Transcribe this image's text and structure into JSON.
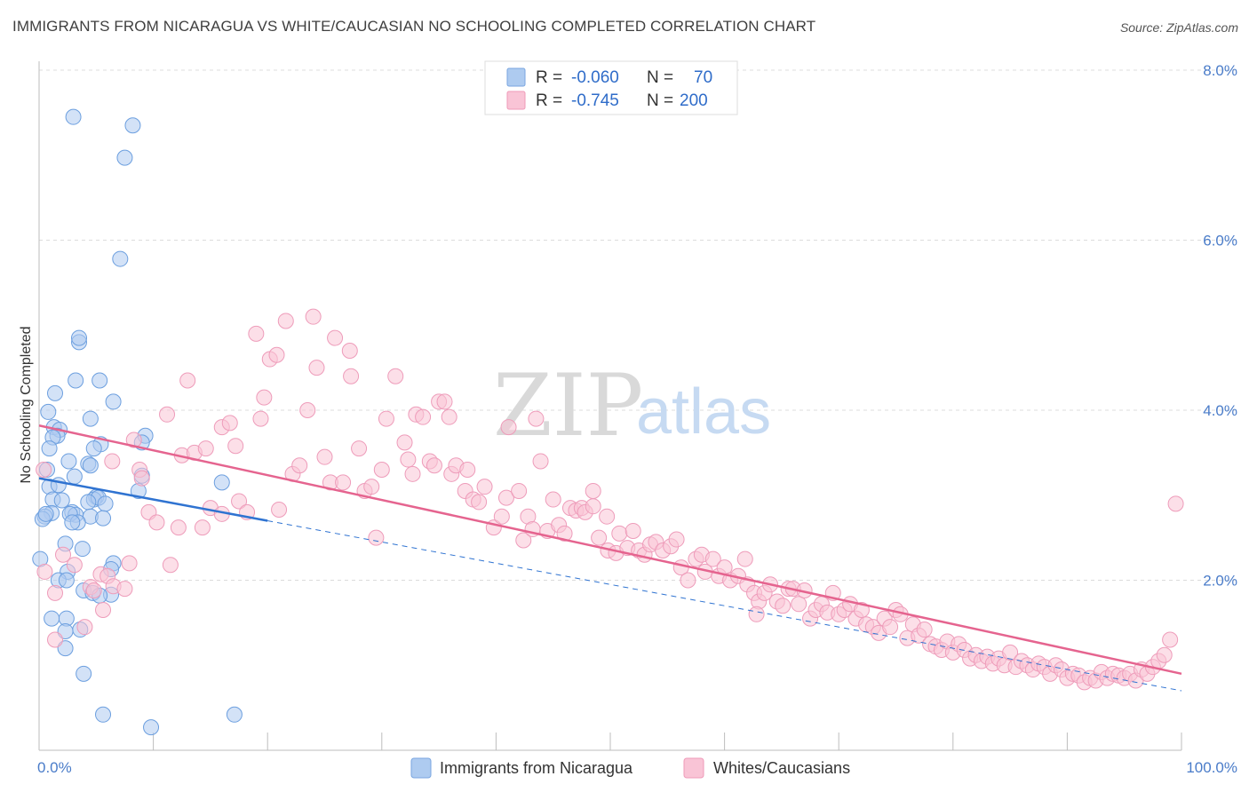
{
  "title": "IMMIGRANTS FROM NICARAGUA VS WHITE/CAUCASIAN NO SCHOOLING COMPLETED CORRELATION CHART",
  "source": "Source: ZipAtlas.com",
  "watermark": {
    "zip": "ZIP",
    "atlas": "atlas"
  },
  "legend": {
    "r_label": "R =",
    "n_label": "N =",
    "rows": [
      {
        "r": "-0.060",
        "n": "70",
        "color": "#aecbf0",
        "stroke": "#7aa6e0"
      },
      {
        "r": "-0.745",
        "n": "200",
        "color": "#f9c4d6",
        "stroke": "#ef9ab8"
      }
    ]
  },
  "chart_data": {
    "type": "scatter",
    "xlabel": "",
    "ylabel": "No Schooling Completed",
    "x_ticks": [
      "0.0%",
      "100.0%"
    ],
    "y_ticks": [
      "2.0%",
      "4.0%",
      "6.0%",
      "8.0%"
    ],
    "xlim": [
      0,
      100
    ],
    "ylim": [
      0,
      8
    ],
    "grid": true,
    "legend_position": "top-center",
    "series": [
      {
        "name": "Immigrants from Nicaragua",
        "color": "#aecbf0",
        "stroke": "#6c9fdf",
        "line_color": "#2f73d1",
        "trend": {
          "x0": 0,
          "y0": 3.2,
          "x1": 20,
          "y1": 2.7,
          "x_dash_end": 100,
          "y_dash_end": 0.7
        },
        "points": [
          [
            3,
            7.45
          ],
          [
            8.2,
            7.35
          ],
          [
            7.5,
            6.97
          ],
          [
            7.1,
            5.78
          ],
          [
            3.5,
            4.8
          ],
          [
            3.5,
            4.85
          ],
          [
            3.2,
            4.35
          ],
          [
            5.3,
            4.35
          ],
          [
            1.4,
            4.2
          ],
          [
            6.5,
            4.1
          ],
          [
            0.8,
            3.98
          ],
          [
            4.5,
            3.9
          ],
          [
            1.3,
            3.8
          ],
          [
            1.8,
            3.77
          ],
          [
            1.6,
            3.7
          ],
          [
            1.2,
            3.68
          ],
          [
            9.3,
            3.7
          ],
          [
            5.4,
            3.6
          ],
          [
            9,
            3.62
          ],
          [
            0.9,
            3.55
          ],
          [
            4.8,
            3.55
          ],
          [
            2.6,
            3.4
          ],
          [
            4.3,
            3.37
          ],
          [
            4.5,
            3.35
          ],
          [
            0.7,
            3.3
          ],
          [
            9,
            3.23
          ],
          [
            3.1,
            3.22
          ],
          [
            16,
            3.15
          ],
          [
            0.9,
            3.1
          ],
          [
            1.7,
            3.12
          ],
          [
            8.7,
            3.05
          ],
          [
            5,
            2.98
          ],
          [
            4.8,
            2.95
          ],
          [
            5.2,
            2.97
          ],
          [
            1.2,
            2.95
          ],
          [
            2,
            2.94
          ],
          [
            4.3,
            2.92
          ],
          [
            2.9,
            2.8
          ],
          [
            5.8,
            2.9
          ],
          [
            1.1,
            2.79
          ],
          [
            0.5,
            2.75
          ],
          [
            3.2,
            2.77
          ],
          [
            2.7,
            2.78
          ],
          [
            4.5,
            2.75
          ],
          [
            5.6,
            2.73
          ],
          [
            3.4,
            2.68
          ],
          [
            0.3,
            2.72
          ],
          [
            0.6,
            2.78
          ],
          [
            2.3,
            2.43
          ],
          [
            3.8,
            2.37
          ],
          [
            0.1,
            2.25
          ],
          [
            6.5,
            2.2
          ],
          [
            6.3,
            2.13
          ],
          [
            2.5,
            2.1
          ],
          [
            1.7,
            2.0
          ],
          [
            2.4,
            2.0
          ],
          [
            3.9,
            1.88
          ],
          [
            4.7,
            1.85
          ],
          [
            6.3,
            1.83
          ],
          [
            5.3,
            1.82
          ],
          [
            2.4,
            1.55
          ],
          [
            3.6,
            1.42
          ],
          [
            2.3,
            1.4
          ],
          [
            2.3,
            1.2
          ],
          [
            3.9,
            0.9
          ],
          [
            5.6,
            0.42
          ],
          [
            17.1,
            0.42
          ],
          [
            9.8,
            0.27
          ],
          [
            1.1,
            1.55
          ],
          [
            2.9,
            2.68
          ]
        ]
      },
      {
        "name": "Whites/Caucasians",
        "color": "#f9c4d6",
        "stroke": "#ee9cba",
        "line_color": "#e5648f",
        "trend": {
          "x0": 0,
          "y0": 3.82,
          "x1": 100,
          "y1": 0.9
        },
        "points": [
          [
            0.4,
            3.3
          ],
          [
            0.5,
            2.1
          ],
          [
            1.4,
            1.85
          ],
          [
            1.4,
            1.3
          ],
          [
            2.1,
            2.3
          ],
          [
            3.1,
            2.18
          ],
          [
            4,
            1.45
          ],
          [
            4.5,
            1.92
          ],
          [
            4.8,
            1.88
          ],
          [
            5.4,
            2.07
          ],
          [
            5.6,
            1.65
          ],
          [
            6,
            2.05
          ],
          [
            6.5,
            1.93
          ],
          [
            7.5,
            1.9
          ],
          [
            7.9,
            2.2
          ],
          [
            6.4,
            3.4
          ],
          [
            8.3,
            3.65
          ],
          [
            8.8,
            3.3
          ],
          [
            9,
            3.2
          ],
          [
            9.6,
            2.8
          ],
          [
            10.3,
            2.68
          ],
          [
            11.2,
            3.95
          ],
          [
            11.5,
            2.18
          ],
          [
            12.2,
            2.62
          ],
          [
            12.5,
            3.47
          ],
          [
            13,
            4.35
          ],
          [
            13.6,
            3.5
          ],
          [
            14.3,
            2.62
          ],
          [
            14.6,
            3.55
          ],
          [
            15,
            2.85
          ],
          [
            16,
            3.8
          ],
          [
            16,
            2.78
          ],
          [
            16.7,
            3.85
          ],
          [
            17.2,
            3.58
          ],
          [
            17.5,
            2.93
          ],
          [
            18.2,
            2.8
          ],
          [
            19,
            4.9
          ],
          [
            19.4,
            3.9
          ],
          [
            19.7,
            4.15
          ],
          [
            20.2,
            4.6
          ],
          [
            20.8,
            4.65
          ],
          [
            21,
            2.83
          ],
          [
            21.6,
            5.05
          ],
          [
            22.2,
            3.25
          ],
          [
            22.8,
            3.35
          ],
          [
            23.5,
            4.0
          ],
          [
            24,
            5.1
          ],
          [
            24.3,
            4.5
          ],
          [
            25,
            3.45
          ],
          [
            25.5,
            3.15
          ],
          [
            25.9,
            4.85
          ],
          [
            26.6,
            3.15
          ],
          [
            27.2,
            4.7
          ],
          [
            27.3,
            4.4
          ],
          [
            28,
            3.55
          ],
          [
            28.5,
            3.05
          ],
          [
            29.1,
            3.1
          ],
          [
            29.5,
            2.5
          ],
          [
            30,
            3.3
          ],
          [
            30.4,
            3.9
          ],
          [
            31.2,
            4.4
          ],
          [
            32,
            3.62
          ],
          [
            32.3,
            3.42
          ],
          [
            32.7,
            3.25
          ],
          [
            33,
            3.95
          ],
          [
            33.6,
            3.92
          ],
          [
            34.2,
            3.4
          ],
          [
            34.6,
            3.35
          ],
          [
            35,
            4.1
          ],
          [
            35.5,
            4.1
          ],
          [
            35.9,
            3.92
          ],
          [
            36.1,
            3.25
          ],
          [
            36.5,
            3.35
          ],
          [
            37.3,
            3.05
          ],
          [
            37.5,
            3.3
          ],
          [
            38,
            2.95
          ],
          [
            38.5,
            2.92
          ],
          [
            39,
            3.1
          ],
          [
            39.8,
            2.62
          ],
          [
            40.5,
            2.75
          ],
          [
            40.9,
            2.97
          ],
          [
            41.1,
            3.8
          ],
          [
            42,
            3.05
          ],
          [
            42.4,
            2.47
          ],
          [
            42.8,
            2.75
          ],
          [
            43.2,
            2.6
          ],
          [
            43.5,
            3.9
          ],
          [
            43.9,
            3.4
          ],
          [
            44.5,
            2.58
          ],
          [
            45,
            2.95
          ],
          [
            45.5,
            2.65
          ],
          [
            46,
            2.55
          ],
          [
            46.5,
            2.85
          ],
          [
            47,
            2.82
          ],
          [
            47.5,
            2.85
          ],
          [
            47.8,
            2.8
          ],
          [
            48.5,
            3.05
          ],
          [
            48.5,
            2.87
          ],
          [
            49,
            2.5
          ],
          [
            49.7,
            2.75
          ],
          [
            49.8,
            2.35
          ],
          [
            50.5,
            2.32
          ],
          [
            50.8,
            2.55
          ],
          [
            51.5,
            2.38
          ],
          [
            52,
            2.58
          ],
          [
            52.5,
            2.35
          ],
          [
            53,
            2.3
          ],
          [
            53.5,
            2.42
          ],
          [
            54,
            2.45
          ],
          [
            54.6,
            2.35
          ],
          [
            55.3,
            2.4
          ],
          [
            55.8,
            2.48
          ],
          [
            56.2,
            2.15
          ],
          [
            56.8,
            2.0
          ],
          [
            57.5,
            2.25
          ],
          [
            58,
            2.3
          ],
          [
            58.3,
            2.1
          ],
          [
            59,
            2.25
          ],
          [
            59.5,
            2.05
          ],
          [
            60,
            2.15
          ],
          [
            60.5,
            2.0
          ],
          [
            61.2,
            2.05
          ],
          [
            61.8,
            2.25
          ],
          [
            62,
            1.95
          ],
          [
            62.6,
            1.85
          ],
          [
            63,
            1.75
          ],
          [
            63.5,
            1.85
          ],
          [
            64,
            1.95
          ],
          [
            64.6,
            1.75
          ],
          [
            65.1,
            1.7
          ],
          [
            65.6,
            1.9
          ],
          [
            66,
            1.9
          ],
          [
            66.5,
            1.72
          ],
          [
            67,
            1.88
          ],
          [
            67.5,
            1.55
          ],
          [
            68,
            1.65
          ],
          [
            68.5,
            1.72
          ],
          [
            69,
            1.62
          ],
          [
            69.5,
            1.85
          ],
          [
            70,
            1.6
          ],
          [
            70.5,
            1.65
          ],
          [
            71,
            1.72
          ],
          [
            71.5,
            1.55
          ],
          [
            72,
            1.65
          ],
          [
            72.4,
            1.48
          ],
          [
            73,
            1.45
          ],
          [
            73.5,
            1.38
          ],
          [
            74,
            1.55
          ],
          [
            74.5,
            1.45
          ],
          [
            75,
            1.65
          ],
          [
            75.4,
            1.6
          ],
          [
            76,
            1.32
          ],
          [
            76.5,
            1.48
          ],
          [
            77,
            1.35
          ],
          [
            77.5,
            1.42
          ],
          [
            78,
            1.25
          ],
          [
            78.5,
            1.22
          ],
          [
            79,
            1.18
          ],
          [
            79.5,
            1.28
          ],
          [
            80,
            1.15
          ],
          [
            80.5,
            1.25
          ],
          [
            81,
            1.18
          ],
          [
            81.5,
            1.08
          ],
          [
            82,
            1.12
          ],
          [
            82.5,
            1.05
          ],
          [
            83,
            1.1
          ],
          [
            83.5,
            1.02
          ],
          [
            84,
            1.08
          ],
          [
            84.5,
            1.0
          ],
          [
            85,
            1.15
          ],
          [
            85.5,
            0.98
          ],
          [
            86,
            1.05
          ],
          [
            86.5,
            1.0
          ],
          [
            87,
            0.95
          ],
          [
            87.5,
            1.02
          ],
          [
            88,
            0.98
          ],
          [
            88.5,
            0.9
          ],
          [
            89,
            1.0
          ],
          [
            89.5,
            0.95
          ],
          [
            90,
            0.85
          ],
          [
            90.5,
            0.9
          ],
          [
            91,
            0.88
          ],
          [
            91.5,
            0.8
          ],
          [
            92,
            0.85
          ],
          [
            92.5,
            0.82
          ],
          [
            93,
            0.92
          ],
          [
            93.5,
            0.85
          ],
          [
            94,
            0.9
          ],
          [
            94.5,
            0.88
          ],
          [
            95,
            0.85
          ],
          [
            95.5,
            0.9
          ],
          [
            96,
            0.82
          ],
          [
            96.5,
            0.95
          ],
          [
            97,
            0.9
          ],
          [
            97.5,
            0.98
          ],
          [
            98,
            1.05
          ],
          [
            98.5,
            1.12
          ],
          [
            99,
            1.3
          ],
          [
            99.5,
            2.9
          ],
          [
            62.8,
            1.6
          ]
        ]
      }
    ]
  }
}
